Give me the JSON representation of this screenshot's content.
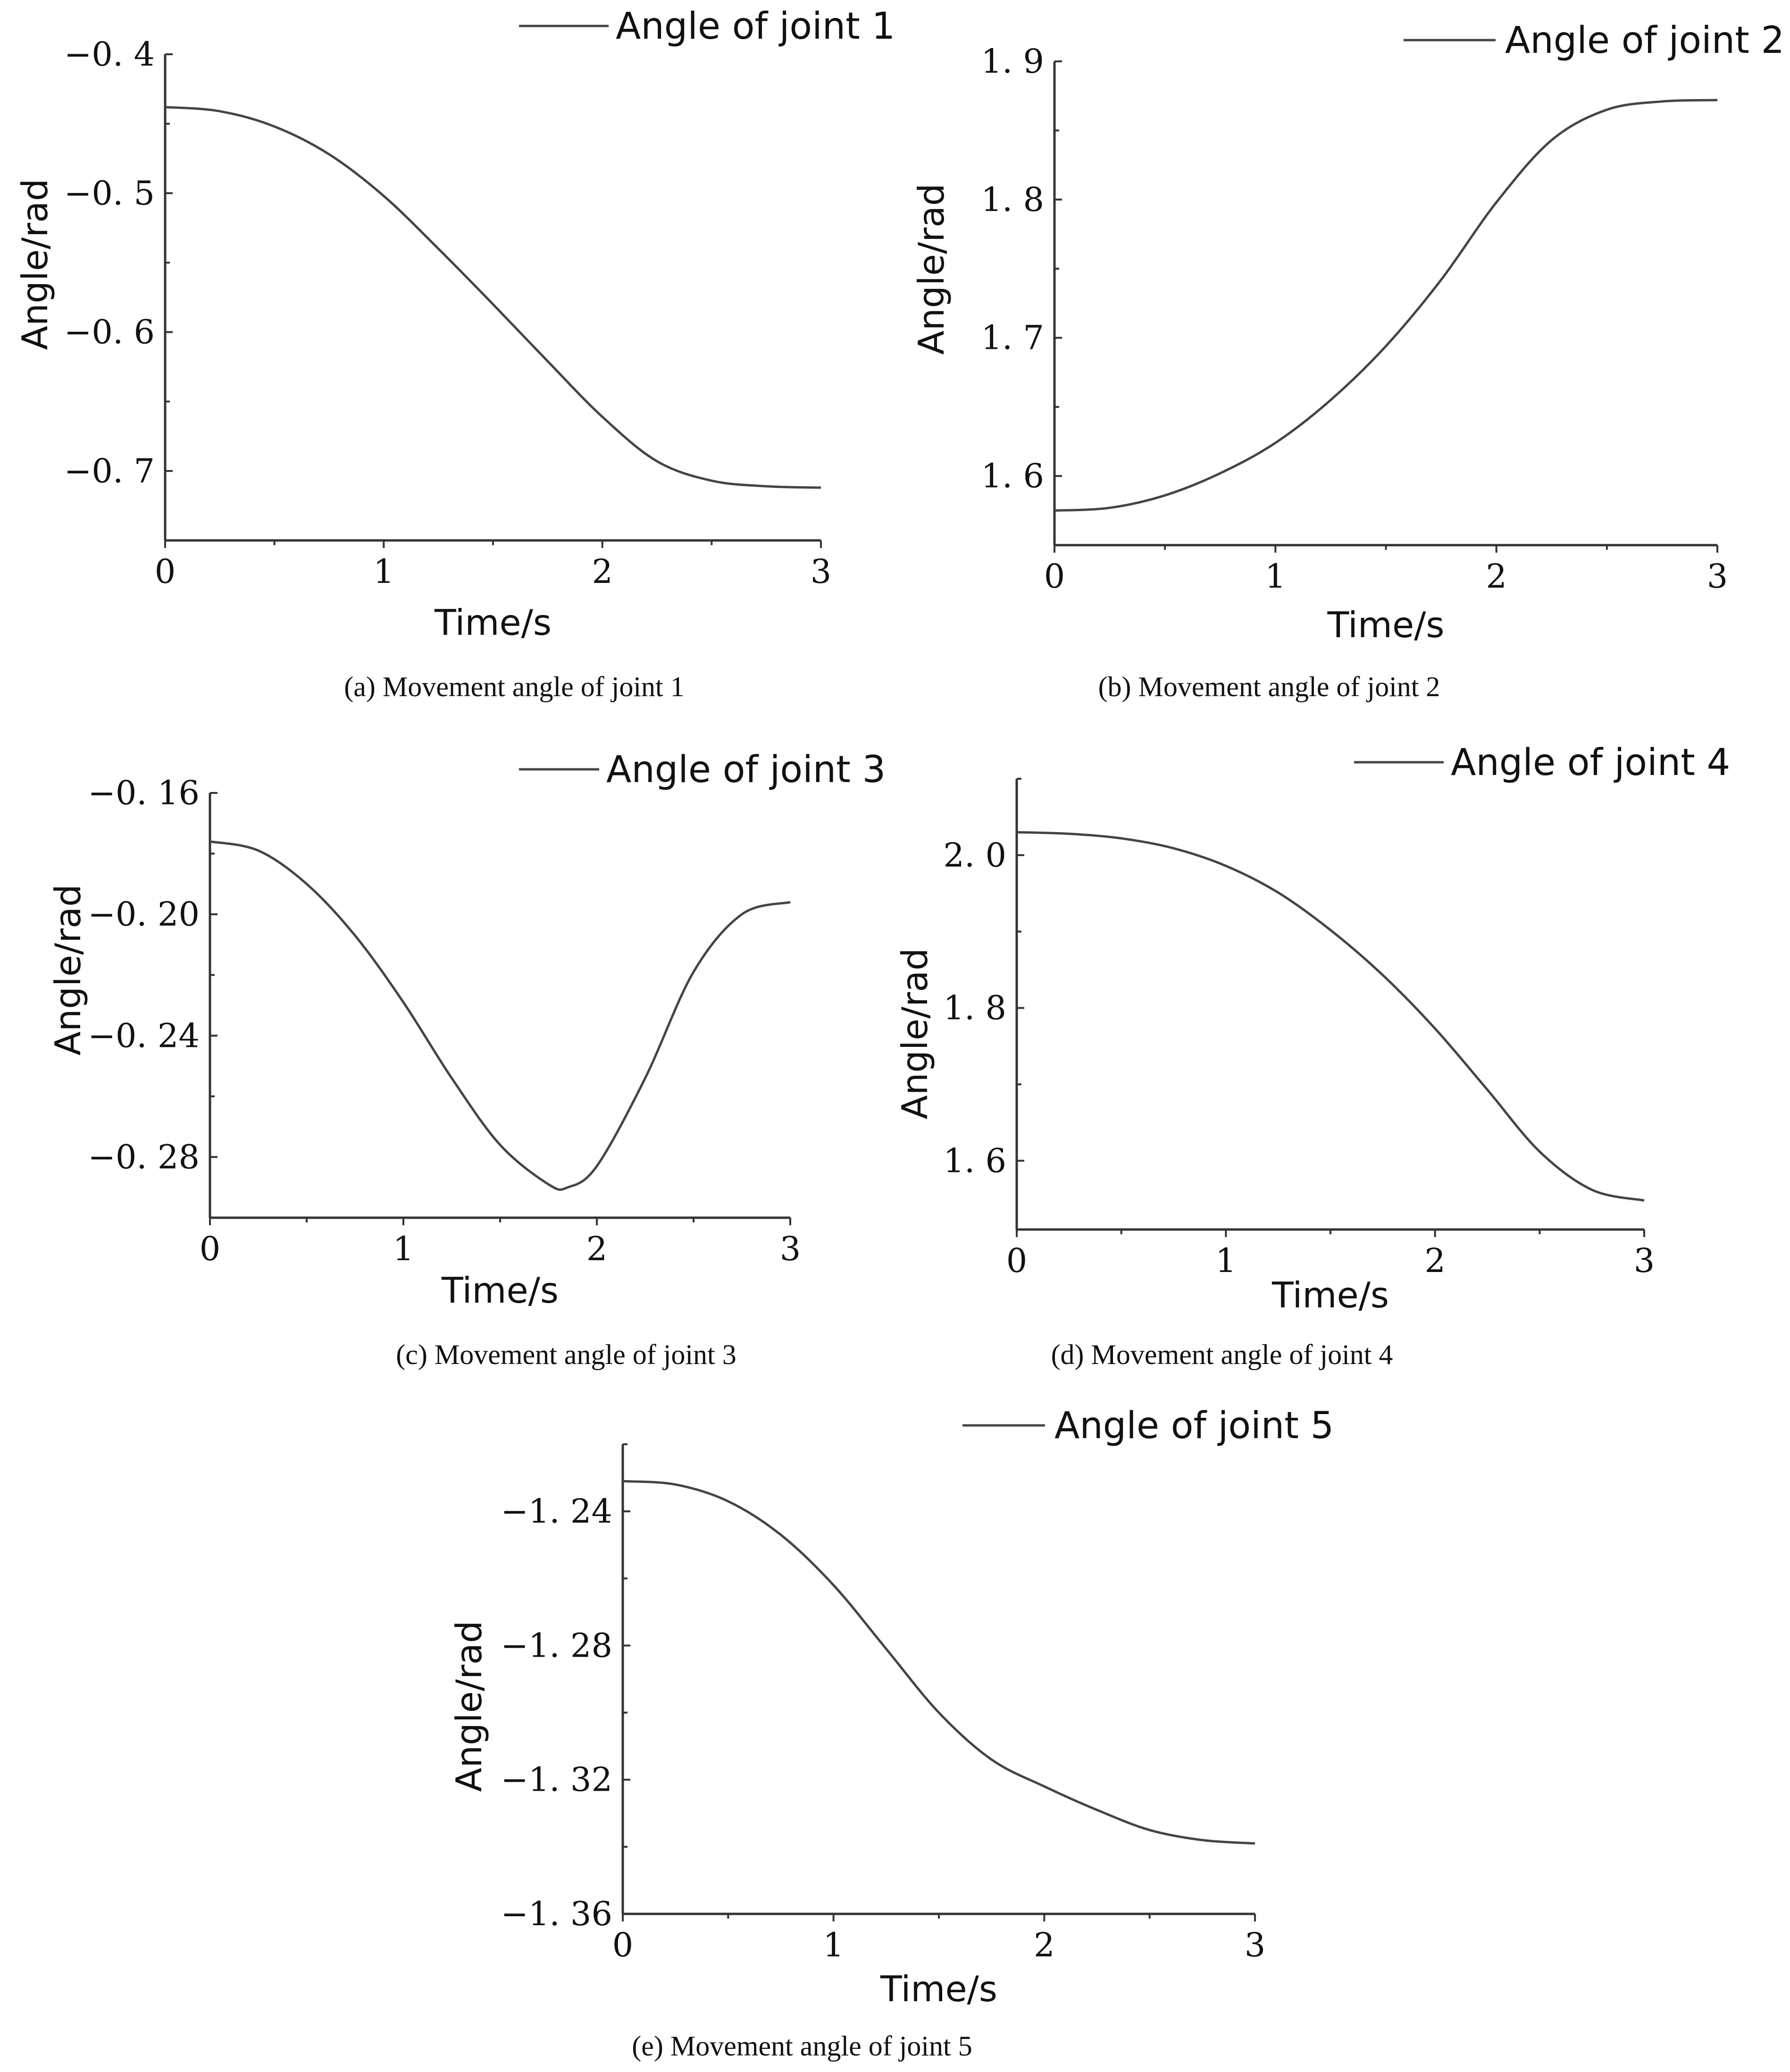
{
  "chart_data": [
    {
      "type": "line",
      "panel": "a",
      "caption": "(a) Movement angle of joint 1",
      "legend": "Angle of joint 1",
      "xlabel": "Time/s",
      "ylabel": "Angle/rad",
      "xlim": [
        0,
        3
      ],
      "ylim": [
        -0.75,
        -0.4
      ],
      "xticks": [
        0,
        1,
        2,
        3
      ],
      "xtick_labels": [
        "0",
        "1",
        "2",
        "3"
      ],
      "yticks": [
        -0.4,
        -0.5,
        -0.6,
        -0.7
      ],
      "ytick_labels": [
        "−0. 4",
        "−0. 5",
        "−0. 6",
        "−0. 7"
      ],
      "minor_ticks_per_major": 2,
      "series": [
        {
          "name": "Angle of joint 1",
          "x": [
            0,
            0.25,
            0.5,
            0.75,
            1.0,
            1.25,
            1.5,
            1.75,
            2.0,
            2.25,
            2.5,
            2.75,
            3.0
          ],
          "y": [
            -0.438,
            -0.441,
            -0.452,
            -0.472,
            -0.502,
            -0.54,
            -0.58,
            -0.621,
            -0.661,
            -0.693,
            -0.707,
            -0.711,
            -0.712
          ]
        }
      ]
    },
    {
      "type": "line",
      "panel": "b",
      "caption": "(b) Movement angle of joint 2",
      "legend": "Angle of joint 2",
      "xlabel": "Time/s",
      "ylabel": "Angle/rad",
      "xlim": [
        0,
        3
      ],
      "ylim": [
        1.55,
        1.9
      ],
      "xticks": [
        0,
        1,
        2,
        3
      ],
      "xtick_labels": [
        "0",
        "1",
        "2",
        "3"
      ],
      "yticks": [
        1.6,
        1.7,
        1.8,
        1.9
      ],
      "ytick_labels": [
        "1. 6",
        "1. 7",
        "1. 8",
        "1. 9"
      ],
      "minor_ticks_per_major": 2,
      "series": [
        {
          "name": "Angle of joint 2",
          "x": [
            0,
            0.25,
            0.5,
            0.75,
            1.0,
            1.25,
            1.5,
            1.75,
            2.0,
            2.25,
            2.5,
            2.75,
            3.0
          ],
          "y": [
            1.575,
            1.577,
            1.586,
            1.602,
            1.624,
            1.655,
            1.694,
            1.742,
            1.798,
            1.843,
            1.865,
            1.871,
            1.872
          ]
        }
      ]
    },
    {
      "type": "line",
      "panel": "c",
      "caption": "(c) Movement angle of joint 3",
      "legend": "Angle of joint 3",
      "xlabel": "Time/s",
      "ylabel": "Angle/rad",
      "xlim": [
        0,
        3
      ],
      "ylim": [
        -0.3,
        -0.16
      ],
      "xticks": [
        0,
        1,
        2,
        3
      ],
      "xtick_labels": [
        "0",
        "1",
        "2",
        "3"
      ],
      "yticks": [
        -0.16,
        -0.2,
        -0.24,
        -0.28
      ],
      "ytick_labels": [
        "−0. 16",
        "−0. 20",
        "−0. 24",
        "−0. 28"
      ],
      "minor_ticks_per_major": 2,
      "series": [
        {
          "name": "Angle of joint 3",
          "x": [
            0,
            0.25,
            0.5,
            0.75,
            1.0,
            1.25,
            1.5,
            1.75,
            1.85,
            2.0,
            2.25,
            2.5,
            2.75,
            3.0
          ],
          "y": [
            -0.176,
            -0.179,
            -0.19,
            -0.207,
            -0.229,
            -0.254,
            -0.276,
            -0.289,
            -0.29,
            -0.283,
            -0.254,
            -0.219,
            -0.2,
            -0.196
          ]
        }
      ]
    },
    {
      "type": "line",
      "panel": "d",
      "caption": "(d) Movement angle of joint 4",
      "legend": "Angle of joint 4",
      "xlabel": "Time/s",
      "ylabel": "Angle/rad",
      "xlim": [
        0,
        3
      ],
      "ylim": [
        1.51,
        2.1
      ],
      "xticks": [
        0,
        1,
        2,
        3
      ],
      "xtick_labels": [
        "0",
        "1",
        "2",
        "3"
      ],
      "yticks": [
        1.6,
        1.8,
        2.0
      ],
      "ytick_labels": [
        "1. 6",
        "1. 8",
        "2. 0"
      ],
      "minor_ticks_per_major": 2,
      "series": [
        {
          "name": "Angle of joint 4",
          "x": [
            0,
            0.25,
            0.5,
            0.75,
            1.0,
            1.25,
            1.5,
            1.75,
            2.0,
            2.25,
            2.5,
            2.75,
            3.0
          ],
          "y": [
            2.03,
            2.028,
            2.022,
            2.009,
            1.986,
            1.951,
            1.902,
            1.843,
            1.773,
            1.693,
            1.612,
            1.562,
            1.548
          ]
        }
      ]
    },
    {
      "type": "line",
      "panel": "e",
      "caption": "(e) Movement angle of joint 5",
      "legend": "Angle of joint 5",
      "xlabel": "Time/s",
      "ylabel": "Angle/rad",
      "xlim": [
        0,
        3
      ],
      "ylim": [
        -1.36,
        -1.22
      ],
      "xticks": [
        0,
        1,
        2,
        3
      ],
      "xtick_labels": [
        "0",
        "1",
        "2",
        "3"
      ],
      "yticks": [
        -1.24,
        -1.28,
        -1.32,
        -1.36
      ],
      "ytick_labels": [
        "−1. 24",
        "−1. 28",
        "−1. 32",
        "−1. 36"
      ],
      "minor_ticks_per_major": 2,
      "series": [
        {
          "name": "Angle of joint 5",
          "x": [
            0,
            0.25,
            0.5,
            0.75,
            1.0,
            1.25,
            1.5,
            1.75,
            2.0,
            2.25,
            2.5,
            2.75,
            3.0
          ],
          "y": [
            -1.231,
            -1.232,
            -1.237,
            -1.247,
            -1.262,
            -1.281,
            -1.3,
            -1.314,
            -1.322,
            -1.329,
            -1.335,
            -1.338,
            -1.339
          ]
        }
      ]
    }
  ]
}
